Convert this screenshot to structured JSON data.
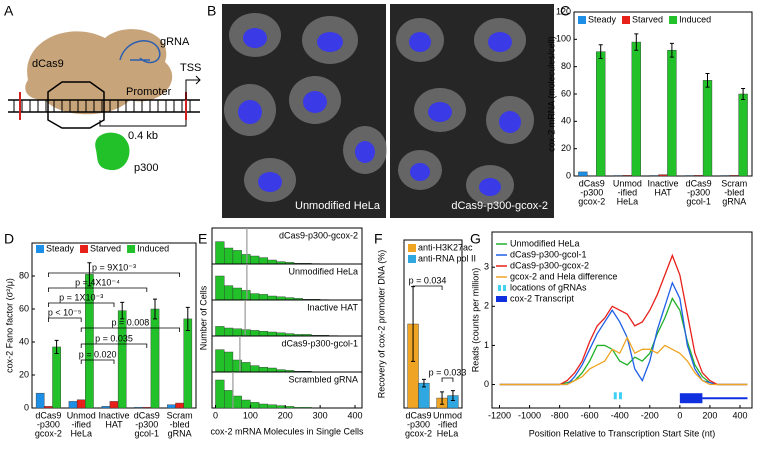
{
  "panel_labels": [
    "A",
    "B",
    "C",
    "D",
    "E",
    "F",
    "G"
  ],
  "diagram_a": {
    "labels": {
      "dcas9": "dCas9",
      "grna": "gRNA",
      "promoter": "Promoter",
      "tss": "TSS",
      "distance": "0.4 kb",
      "p300": "p300"
    }
  },
  "images_b": {
    "captions": [
      "Unmodified HeLa",
      "dCas9-p300-gcox-2"
    ]
  },
  "chart_data": [
    {
      "type": "bar",
      "ylabel": "cox-2 mRNA (molecules/cell)",
      "categories": [
        [
          "dCas9",
          "-p300",
          "gcox-2"
        ],
        [
          "Unmod",
          "-ified",
          "HeLa"
        ],
        [
          "Inactive",
          "HAT"
        ],
        [
          "dCas9",
          "-p300",
          "gcol-1"
        ],
        [
          "Scram",
          "-bled",
          "gRNA"
        ]
      ],
      "series": [
        {
          "name": "Steady",
          "color": "#1e8fe6",
          "values": [
            3,
            0.4,
            0.4,
            0.4,
            0.4
          ]
        },
        {
          "name": "Starved",
          "color": "#e8201a",
          "values": [
            0.3,
            0.5,
            1,
            0.5,
            0.5
          ]
        },
        {
          "name": "Induced",
          "color": "#22c12a",
          "values": [
            91,
            98,
            92,
            70,
            60
          ],
          "errors": [
            5,
            6,
            5,
            5,
            4
          ]
        }
      ],
      "ylim": [
        0,
        120
      ],
      "yticks": [
        0,
        20,
        40,
        60,
        80,
        100,
        120
      ],
      "legend": "upper left"
    },
    {
      "type": "bar",
      "ylabel": "cox-2 Fano factor (σ²/μ)",
      "categories": [
        [
          "dCas9",
          "-p300",
          "gcox-2"
        ],
        [
          "Unmod",
          "-ified",
          "HeLa"
        ],
        [
          "Inactive",
          "HAT"
        ],
        [
          "dCas9",
          "-p300",
          "gcol-1"
        ],
        [
          "Scram",
          "-bled",
          "gRNA"
        ]
      ],
      "series": [
        {
          "name": "Steady",
          "color": "#1e8fe6",
          "values": [
            9,
            4,
            1,
            0.5,
            2
          ]
        },
        {
          "name": "Starved",
          "color": "#e8201a",
          "values": [
            1,
            5,
            4,
            0.5,
            3
          ]
        },
        {
          "name": "Induced",
          "color": "#22c12a",
          "values": [
            37,
            81,
            59,
            60,
            54
          ],
          "errors": [
            4,
            7,
            5,
            6,
            7
          ]
        }
      ],
      "ylim": [
        0,
        100
      ],
      "yticks": [
        0,
        20,
        40,
        60,
        80
      ],
      "legend": "upper left",
      "annotations": [
        "p = 9X10⁻³",
        "p = 4X10⁻⁴",
        "p = 1X10⁻³",
        "p < 10⁻⁵",
        "p = 0.008",
        "p = 0.035",
        "p = 0.020"
      ]
    },
    {
      "type": "histogram",
      "xlabel": "cox-2 mRNA Molecules in Single Cells",
      "ylabel": "Number of Cells",
      "bins": [
        0,
        25,
        50,
        75,
        100,
        125,
        150,
        175,
        200,
        225,
        250,
        275,
        300,
        325,
        350,
        375,
        400
      ],
      "xlim": [
        -10,
        420
      ],
      "xticks": [
        0,
        100,
        200,
        300,
        400
      ],
      "ylim": [
        0,
        40
      ],
      "color": "#22c12a",
      "panels": [
        {
          "name": "dCas9-p300-gcox-2",
          "values": [
            28,
            20,
            17,
            12,
            10,
            8,
            5,
            3,
            2,
            1,
            1,
            0.5,
            0,
            0,
            0,
            0
          ],
          "mean": 90
        },
        {
          "name": "Unmodified HeLa",
          "values": [
            30,
            18,
            15,
            12,
            8,
            7,
            5,
            4,
            3,
            2,
            1,
            1,
            0.5,
            0,
            0,
            0
          ],
          "mean": 90
        },
        {
          "name": "Inactive HAT",
          "values": [
            12,
            10,
            9,
            8,
            7,
            6,
            5,
            4,
            3,
            2,
            2,
            1,
            1,
            0.5,
            0,
            0
          ],
          "mean": 85
        },
        {
          "name": "dCas9-p300-gcol-1",
          "values": [
            28,
            25,
            15,
            12,
            8,
            6,
            5,
            3,
            2,
            1,
            1,
            0,
            0,
            0,
            0,
            0
          ],
          "mean": 70
        },
        {
          "name": "Scrambled gRNA",
          "values": [
            35,
            22,
            15,
            10,
            7,
            5,
            4,
            3,
            2,
            1,
            1,
            0,
            0,
            0,
            0,
            0
          ],
          "mean": 50
        }
      ]
    },
    {
      "type": "bar",
      "ylabel": "Recovery of cox-2 promoter DNA (%)",
      "categories": [
        [
          "dCas9",
          "-p300",
          "gcox-2"
        ],
        [
          "Unmod",
          "-ified",
          "HeLa"
        ]
      ],
      "series": [
        {
          "name": "anti-H3K27ac",
          "color": "#f0a423",
          "values": [
            13.5,
            1.6
          ],
          "errors": [
            6,
            1
          ]
        },
        {
          "name": "anti-RNA pol II",
          "color": "#2fa8e2",
          "values": [
            4,
            2
          ],
          "errors": [
            0.6,
            0.8
          ]
        }
      ],
      "ylim": [
        0,
        27
      ],
      "legend": "upper left",
      "annotations": [
        "p = 0.034",
        "p = 0.033"
      ]
    },
    {
      "type": "line",
      "xlabel": "Position Relative to Transcription Start Site (nt)",
      "ylabel": "Reads (counts per million)",
      "x": [
        -1200,
        -1150,
        -1100,
        -1050,
        -1000,
        -950,
        -900,
        -850,
        -800,
        -750,
        -700,
        -650,
        -600,
        -550,
        -500,
        -450,
        -400,
        -350,
        -300,
        -250,
        -200,
        -150,
        -100,
        -50,
        0,
        50,
        100,
        150,
        200,
        250,
        300,
        350,
        400,
        450
      ],
      "series": [
        {
          "name": "Unmodified HeLa",
          "color": "#22b02a",
          "values": [
            0,
            0,
            0,
            0,
            0,
            0,
            0,
            0,
            0,
            0.05,
            0.1,
            0.3,
            0.6,
            1.0,
            1.0,
            0.9,
            0.6,
            0.5,
            0.7,
            0.6,
            0.8,
            1.3,
            1.7,
            2.2,
            1.9,
            1.1,
            0.5,
            0.2,
            0.05,
            0,
            0,
            0,
            0,
            0
          ]
        },
        {
          "name": "dCas9-p300-gcol-1",
          "color": "#1f5fe6",
          "values": [
            0,
            0,
            0,
            0,
            0,
            0,
            0,
            0,
            0,
            0,
            0.2,
            0.5,
            0.9,
            1.3,
            1.6,
            1.9,
            1.6,
            1.2,
            0.4,
            0.1,
            0.6,
            1.4,
            2.0,
            2.6,
            2.2,
            1.0,
            0.4,
            0.1,
            0.05,
            0,
            0,
            0,
            0,
            0
          ]
        },
        {
          "name": "dCas9-p300-gcox-2",
          "color": "#e8201a",
          "values": [
            0,
            0,
            0,
            0,
            0,
            0,
            0,
            0,
            0,
            0.1,
            0.3,
            0.6,
            1.1,
            1.5,
            1.7,
            2.0,
            1.9,
            1.8,
            1.5,
            1.6,
            1.9,
            2.3,
            2.8,
            3.3,
            2.8,
            1.8,
            0.8,
            0.3,
            0.1,
            0,
            0,
            0,
            0,
            0
          ]
        },
        {
          "name": "gcox-2 and Hela difference",
          "color": "#f0a423",
          "values": [
            0,
            0,
            0,
            0,
            0,
            0,
            0,
            0,
            0,
            0,
            0.1,
            0.2,
            0.4,
            0.5,
            0.6,
            0.9,
            0.8,
            1.2,
            0.8,
            0.9,
            0.9,
            0.8,
            1.0,
            0.9,
            0.8,
            0.6,
            0.3,
            0.1,
            0,
            0,
            0,
            0,
            0,
            0
          ]
        }
      ],
      "xlim": [
        -1250,
        480
      ],
      "xticks": [
        -1200,
        -1000,
        -800,
        -600,
        -400,
        -200,
        0,
        200,
        400
      ],
      "ylim": [
        -0.6,
        3.9
      ],
      "yticks": [
        0,
        1,
        2,
        3
      ],
      "legend": "upper left",
      "grna_locations": {
        "name": "locations of gRNAs",
        "color": "#3fd0f2",
        "x": [
          -430,
          -395
        ]
      },
      "transcript": {
        "name": "cox-2 Transcript",
        "color": "#1030e0",
        "start": 0,
        "exon_end": 150,
        "end": 450
      }
    }
  ]
}
